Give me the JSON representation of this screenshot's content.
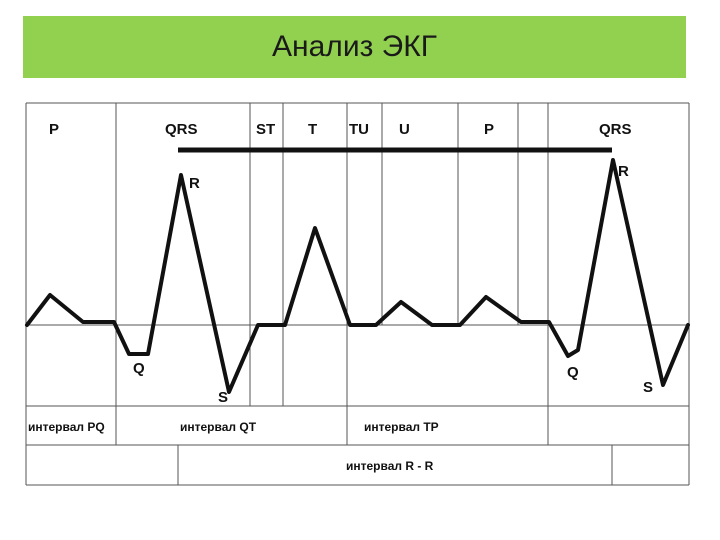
{
  "title": "Анализ ЭКГ",
  "segments": {
    "p1": "P",
    "qrs1": "QRS",
    "st": "ST",
    "t": "T",
    "tu": "TU",
    "u": "U",
    "p2": "P",
    "qrs2": "QRS"
  },
  "waves": {
    "r1": "R",
    "q1": "Q",
    "s1": "S",
    "r2": "R",
    "q2": "Q",
    "s2": "S"
  },
  "intervals": {
    "pq": "интервал PQ",
    "qt": "интервал QT",
    "tp": "интервал TP",
    "rr": "интервал R - R"
  },
  "colors": {
    "title_bg": "#92d050",
    "line": "#111111"
  }
}
